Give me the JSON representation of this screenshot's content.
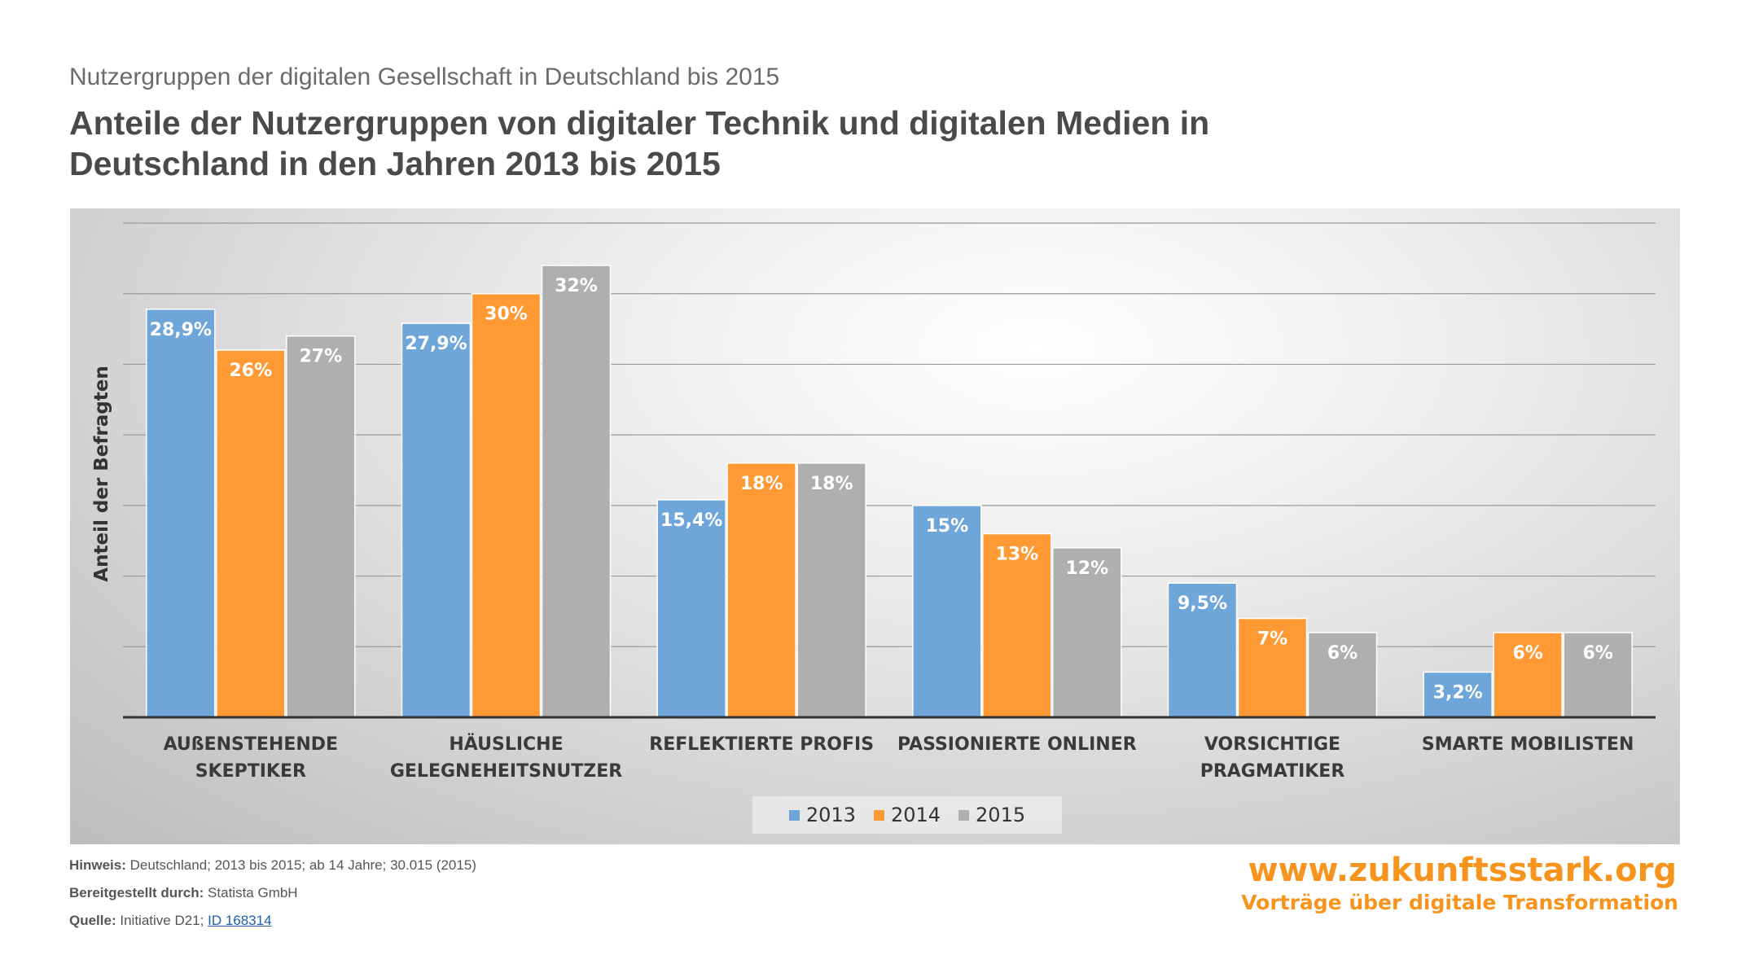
{
  "header": {
    "supertitle": "Nutzergruppen der digitalen Gesellschaft in Deutschland bis 2015",
    "title": "Anteile der Nutzergruppen von digitaler Technik und digitalen Medien in Deutschland in den Jahren 2013 bis 2015"
  },
  "chart_data": {
    "type": "bar",
    "ylabel": "Anteil der Befragten",
    "xlabel": "",
    "ylim": [
      0,
      35
    ],
    "grid": true,
    "legend_position": "bottom",
    "categories": [
      [
        "AUßENSTEHENDE",
        "SKEPTIKER"
      ],
      [
        "HÄUSLICHE",
        "GELEGNEHEITSNUTZER"
      ],
      [
        "REFLEKTIERTE PROFIS"
      ],
      [
        "PASSIONIERTE ONLINER"
      ],
      [
        "VORSICHTIGE",
        "PRAGMATIKER"
      ],
      [
        "SMARTE MOBILISTEN"
      ]
    ],
    "series": [
      {
        "name": "2013",
        "color": "#6fa6d9",
        "values": [
          28.9,
          27.9,
          15.4,
          15,
          9.5,
          3.2
        ],
        "labels": [
          "28,9%",
          "27,9%",
          "15,4%",
          "15%",
          "9,5%",
          "3,2%"
        ]
      },
      {
        "name": "2014",
        "color": "#ff9933",
        "values": [
          26,
          30,
          18,
          13,
          7,
          6
        ],
        "labels": [
          "26%",
          "30%",
          "18%",
          "13%",
          "7%",
          "6%"
        ]
      },
      {
        "name": "2015",
        "color": "#afafaf",
        "values": [
          27,
          32,
          18,
          12,
          6,
          6
        ],
        "labels": [
          "27%",
          "32%",
          "18%",
          "12%",
          "6%",
          "6%"
        ]
      }
    ]
  },
  "notes": {
    "hinweis_label": "Hinweis:",
    "hinweis": "Deutschland; 2013 bis 2015; ab 14 Jahre; 30.015 (2015)",
    "bereitgestellt_label": "Bereitgestellt durch:",
    "bereitgestellt": "Statista GmbH",
    "quelle_label": "Quelle:",
    "quelle": "Initiative D21;",
    "quelle_link": "ID 168314"
  },
  "brand": {
    "url": "www.zukunftsstark.org",
    "tagline": "Vorträge über digitale Transformation"
  }
}
